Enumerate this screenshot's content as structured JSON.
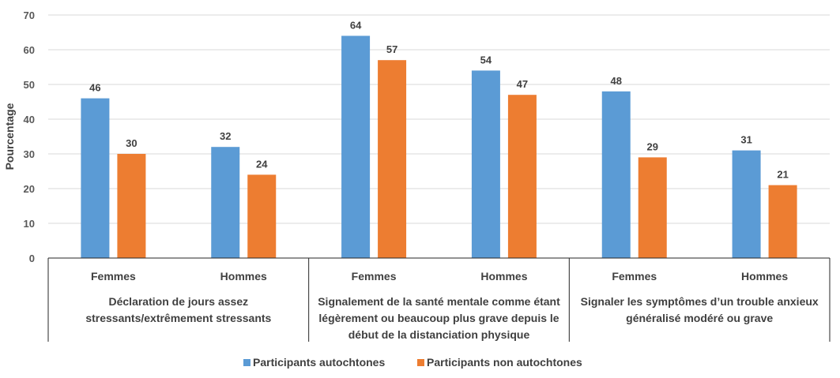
{
  "chart_data": {
    "type": "bar",
    "ylabel": "Pourcentage",
    "ylim": [
      0,
      70
    ],
    "yticks": [
      "0",
      "10",
      "20",
      "30",
      "40",
      "50",
      "60",
      "70"
    ],
    "grid": true,
    "legend_position": "bottom",
    "groups": [
      {
        "label_lines": [
          "Déclaration de jours assez",
          "stressants/extrêmement stressants"
        ],
        "subcategories": [
          "Femmes",
          "Hommes"
        ]
      },
      {
        "label_lines": [
          "Signalement de la santé mentale comme étant",
          "légèrement ou beaucoup plus grave depuis le",
          "début de la distanciation physique"
        ],
        "subcategories": [
          "Femmes",
          "Hommes"
        ]
      },
      {
        "label_lines": [
          "Signaler les symptômes d’un trouble anxieux",
          "généralisé modéré ou grave"
        ],
        "subcategories": [
          "Femmes",
          "Hommes"
        ]
      }
    ],
    "series": [
      {
        "name": "Participants autochtones",
        "color": "#5B9BD5",
        "values": [
          46,
          32,
          64,
          54,
          48,
          31
        ]
      },
      {
        "name": "Participants non autochtones",
        "color": "#ED7D31",
        "values": [
          30,
          24,
          57,
          47,
          29,
          21
        ]
      }
    ]
  }
}
